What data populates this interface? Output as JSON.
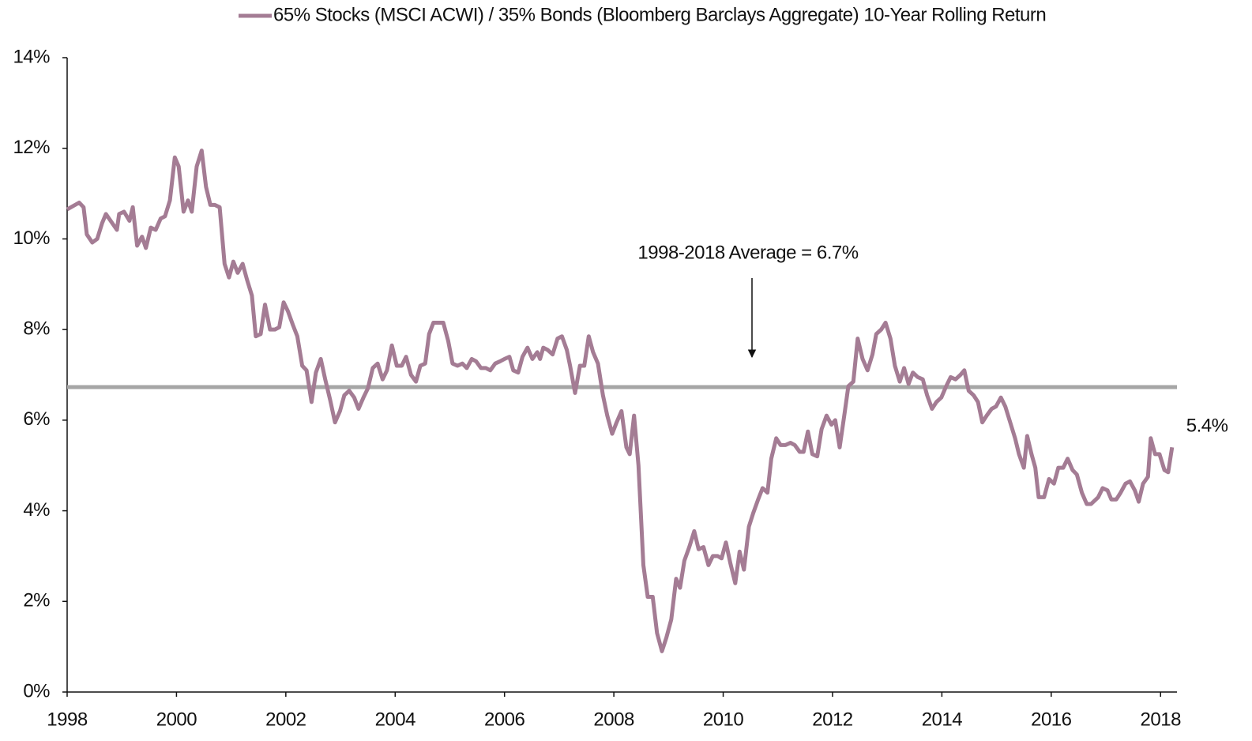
{
  "chart_data": {
    "type": "line",
    "series": [
      {
        "name": "65% Stocks (MSCI ACWI) / 35% Bonds (Bloomberg Barclays Aggregate) 10-Year Rolling Return",
        "color": "#a47c94",
        "x": [
          1998.0,
          1998.22,
          1998.3,
          1998.36,
          1998.46,
          1998.55,
          1998.64,
          1998.71,
          1998.91,
          1998.95,
          1999.04,
          1999.14,
          1999.2,
          1999.28,
          1999.37,
          1999.44,
          1999.53,
          1999.62,
          1999.71,
          1999.79,
          1999.88,
          1999.97,
          2000.04,
          2000.13,
          2000.21,
          2000.28,
          2000.37,
          2000.46,
          2000.54,
          2000.62,
          2000.7,
          2000.79,
          2000.88,
          2000.96,
          2001.04,
          2001.12,
          2001.21,
          2001.29,
          2001.38,
          2001.45,
          2001.54,
          2001.62,
          2001.71,
          2001.8,
          2001.88,
          2001.96,
          2002.04,
          2002.13,
          2002.21,
          2002.3,
          2002.38,
          2002.47,
          2002.55,
          2002.64,
          2002.72,
          2002.81,
          2002.9,
          2002.99,
          2003.07,
          2003.16,
          2003.25,
          2003.33,
          2003.42,
          2003.5,
          2003.59,
          2003.68,
          2003.77,
          2003.85,
          2003.94,
          2004.03,
          2004.12,
          2004.2,
          2004.29,
          2004.38,
          2004.46,
          2004.55,
          2004.62,
          2004.7,
          2004.79,
          2004.88,
          2004.97,
          2005.05,
          2005.14,
          2005.23,
          2005.31,
          2005.4,
          2005.48,
          2005.57,
          2005.66,
          2005.74,
          2005.83,
          2005.92,
          2006.0,
          2006.09,
          2006.16,
          2006.25,
          2006.33,
          2006.42,
          2006.51,
          2006.6,
          2006.65,
          2006.71,
          2006.79,
          2006.88,
          2006.97,
          2007.05,
          2007.14,
          2007.2,
          2007.29,
          2007.38,
          2007.46,
          2007.54,
          2007.62,
          2007.71,
          2007.8,
          2007.88,
          2007.97,
          2008.05,
          2008.14,
          2008.23,
          2008.29,
          2008.37,
          2008.45,
          2008.54,
          2008.62,
          2008.71,
          2008.79,
          2008.88,
          2008.96,
          2009.05,
          2009.14,
          2009.21,
          2009.29,
          2009.38,
          2009.47,
          2009.55,
          2009.64,
          2009.73,
          2009.81,
          2009.9,
          2009.97,
          2010.05,
          2010.13,
          2010.22,
          2010.3,
          2010.38,
          2010.47,
          2010.55,
          2010.64,
          2010.72,
          2010.81,
          2010.88,
          2010.97,
          2011.05,
          2011.14,
          2011.23,
          2011.31,
          2011.4,
          2011.47,
          2011.55,
          2011.63,
          2011.72,
          2011.8,
          2011.89,
          2011.98,
          2012.05,
          2012.13,
          2012.22,
          2012.29,
          2012.38,
          2012.46,
          2012.55,
          2012.64,
          2012.73,
          2012.8,
          2012.89,
          2012.97,
          2013.06,
          2013.14,
          2013.23,
          2013.31,
          2013.39,
          2013.47,
          2013.56,
          2013.65,
          2013.73,
          2013.82,
          2013.9,
          2013.99,
          2014.08,
          2014.16,
          2014.25,
          2014.34,
          2014.41,
          2014.49,
          2014.58,
          2014.66,
          2014.74,
          2014.82,
          2014.91,
          2014.99,
          2015.08,
          2015.16,
          2015.25,
          2015.34,
          2015.41,
          2015.5,
          2015.56,
          2015.64,
          2015.71,
          2015.77,
          2015.87,
          2015.96,
          2016.05,
          2016.13,
          2016.22,
          2016.3,
          2016.39,
          2016.47,
          2016.56,
          2016.65,
          2016.73,
          2016.86,
          2016.94,
          2017.03,
          2017.1,
          2017.19,
          2017.27,
          2017.36,
          2017.44,
          2017.53,
          2017.6,
          2017.68,
          2017.77,
          2017.82,
          2017.9,
          2017.98,
          2018.07,
          2018.14,
          2018.21
        ],
        "values": [
          10.65,
          10.8,
          10.7,
          10.1,
          9.92,
          10.0,
          10.35,
          10.55,
          10.2,
          10.55,
          10.6,
          10.4,
          10.7,
          9.85,
          10.05,
          9.8,
          10.25,
          10.2,
          10.45,
          10.5,
          10.85,
          11.8,
          11.6,
          10.6,
          10.85,
          10.6,
          11.6,
          11.95,
          11.15,
          10.75,
          10.75,
          10.7,
          9.45,
          9.15,
          9.5,
          9.25,
          9.45,
          9.1,
          8.75,
          7.85,
          7.9,
          8.55,
          8.0,
          8.0,
          8.05,
          8.6,
          8.4,
          8.1,
          7.85,
          7.2,
          7.1,
          6.4,
          7.05,
          7.35,
          6.9,
          6.45,
          5.95,
          6.2,
          6.55,
          6.65,
          6.5,
          6.25,
          6.5,
          6.7,
          7.15,
          7.25,
          6.9,
          7.1,
          7.65,
          7.2,
          7.2,
          7.4,
          7.0,
          6.85,
          7.2,
          7.25,
          7.9,
          8.15,
          8.15,
          8.15,
          7.75,
          7.25,
          7.2,
          7.25,
          7.15,
          7.35,
          7.3,
          7.15,
          7.15,
          7.1,
          7.25,
          7.3,
          7.35,
          7.4,
          7.1,
          7.05,
          7.4,
          7.6,
          7.35,
          7.5,
          7.35,
          7.6,
          7.55,
          7.45,
          7.8,
          7.85,
          7.55,
          7.2,
          6.6,
          7.2,
          7.2,
          7.85,
          7.5,
          7.25,
          6.55,
          6.1,
          5.7,
          5.95,
          6.2,
          5.4,
          5.25,
          6.1,
          5.0,
          2.8,
          2.1,
          2.1,
          1.3,
          0.9,
          1.2,
          1.6,
          2.5,
          2.3,
          2.9,
          3.2,
          3.55,
          3.15,
          3.2,
          2.8,
          3.0,
          3.0,
          2.95,
          3.3,
          2.85,
          2.4,
          3.1,
          2.7,
          3.65,
          3.95,
          4.25,
          4.5,
          4.4,
          5.15,
          5.6,
          5.45,
          5.45,
          5.5,
          5.45,
          5.3,
          5.3,
          5.75,
          5.25,
          5.2,
          5.8,
          6.1,
          5.9,
          6.0,
          5.4,
          6.15,
          6.75,
          6.85,
          7.8,
          7.35,
          7.1,
          7.45,
          7.9,
          8.0,
          8.15,
          7.8,
          7.2,
          6.85,
          7.15,
          6.8,
          7.05,
          6.95,
          6.9,
          6.55,
          6.25,
          6.4,
          6.5,
          6.75,
          6.95,
          6.9,
          7.0,
          7.1,
          6.65,
          6.55,
          6.4,
          5.95,
          6.1,
          6.25,
          6.3,
          6.5,
          6.3,
          5.95,
          5.6,
          5.25,
          4.95,
          5.65,
          5.25,
          4.95,
          4.3,
          4.3,
          4.7,
          4.6,
          4.95,
          4.95,
          5.15,
          4.9,
          4.8,
          4.4,
          4.15,
          4.15,
          4.3,
          4.5,
          4.45,
          4.25,
          4.25,
          4.4,
          4.6,
          4.65,
          4.45,
          4.2,
          4.6,
          4.75,
          5.6,
          5.25,
          5.25,
          4.9,
          4.85,
          5.4
        ]
      }
    ],
    "end_label": "5.4%",
    "reference_line": {
      "value": 6.73,
      "label": "1998-2018 Average = 6.7%",
      "color": "#a6a6a6"
    },
    "xlim": [
      1998,
      2018.3
    ],
    "xticks": [
      1998,
      2000,
      2002,
      2004,
      2006,
      2008,
      2010,
      2012,
      2014,
      2016,
      2018
    ],
    "ylim": [
      0,
      14
    ],
    "yticks": [
      {
        "value": 0,
        "label": "0%"
      },
      {
        "value": 2,
        "label": "2%"
      },
      {
        "value": 4,
        "label": "4%"
      },
      {
        "value": 6,
        "label": "6%"
      },
      {
        "value": 8,
        "label": "8%"
      },
      {
        "value": 10,
        "label": "10%"
      },
      {
        "value": 12,
        "label": "12%"
      },
      {
        "value": 14,
        "label": "14%"
      }
    ],
    "grid": false,
    "legend": "top"
  }
}
